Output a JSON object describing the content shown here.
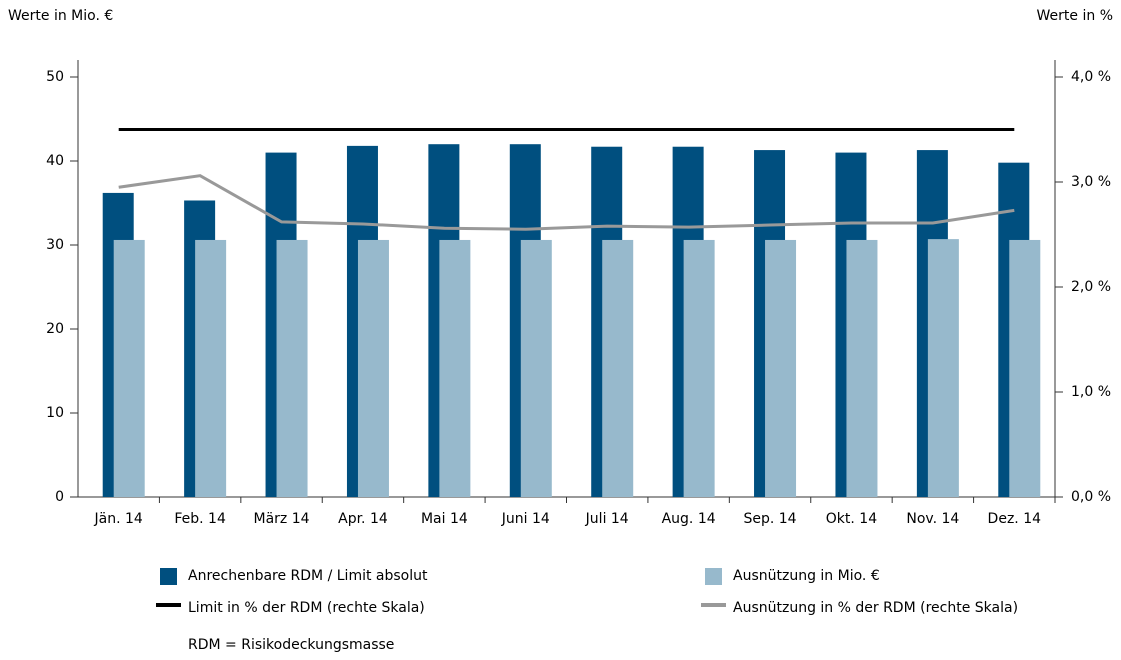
{
  "chart_data": {
    "type": "bar",
    "y_label": "Werte in Mio. €",
    "y2_label": "Werte in %",
    "categories": [
      "Jän. 14",
      "Feb. 14",
      "März 14",
      "Apr. 14",
      "Mai 14",
      "Juni 14",
      "Juli 14",
      "Aug. 14",
      "Sep. 14",
      "Okt. 14",
      "Nov. 14",
      "Dez. 14"
    ],
    "series": [
      {
        "name": "Anrechenbare RDM / Limit absolut",
        "type": "bar",
        "color": "#004f7f",
        "values": [
          36.2,
          35.3,
          41.0,
          41.8,
          42.0,
          42.0,
          41.7,
          41.7,
          41.3,
          41.0,
          41.3,
          39.8
        ]
      },
      {
        "name": "Ausnützung in Mio. €",
        "type": "bar",
        "color": "#97b9cc",
        "values": [
          30.6,
          30.6,
          30.6,
          30.6,
          30.6,
          30.6,
          30.6,
          30.6,
          30.6,
          30.6,
          30.7,
          30.6
        ]
      },
      {
        "name": "Limit in % der RDM (rechte Skala)",
        "type": "line",
        "axis": "y2",
        "color": "#000000",
        "values": [
          3.5,
          3.5,
          3.5,
          3.5,
          3.5,
          3.5,
          3.5,
          3.5,
          3.5,
          3.5,
          3.5,
          3.5
        ]
      },
      {
        "name": "Ausnützung in % der RDM (rechte Skala)",
        "type": "line",
        "axis": "y2",
        "color": "#999999",
        "values": [
          2.95,
          3.06,
          2.62,
          2.6,
          2.56,
          2.55,
          2.58,
          2.57,
          2.59,
          2.61,
          2.61,
          2.73
        ]
      }
    ],
    "ylim": [
      0,
      50
    ],
    "yticks": [
      0,
      10,
      20,
      30,
      40,
      50
    ],
    "y2lim": [
      0,
      4
    ],
    "y2ticks": [
      {
        "value": 0,
        "label": "0,0 %"
      },
      {
        "value": 1,
        "label": "1,0 %"
      },
      {
        "value": 2,
        "label": "2,0 %"
      },
      {
        "value": 3,
        "label": "3,0 %"
      },
      {
        "value": 4,
        "label": "4,0 %"
      }
    ],
    "note": "RDM = Risikodeckungsmasse",
    "grid": false
  }
}
